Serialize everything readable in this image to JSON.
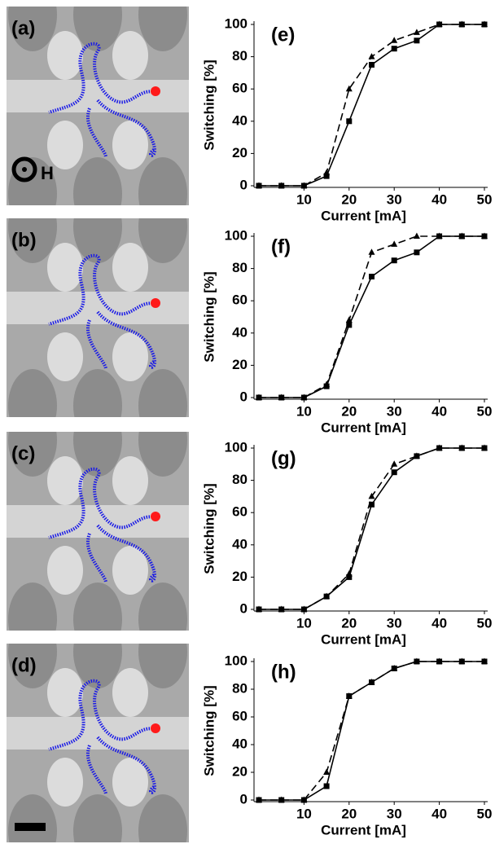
{
  "images": [
    {
      "label": "(a)",
      "field_label": "H"
    },
    {
      "label": "(b)"
    },
    {
      "label": "(c)"
    },
    {
      "label": "(d)"
    }
  ],
  "chart_data": [
    {
      "type": "line",
      "label": "(e)",
      "x_label": "Current [mA]",
      "y_label": "Switching [%]",
      "x": [
        0,
        5,
        10,
        15,
        20,
        25,
        30,
        35,
        40,
        45,
        50
      ],
      "xlim": [
        0,
        50
      ],
      "xticks": [
        10,
        20,
        30,
        40,
        50
      ],
      "ylim": [
        0,
        100
      ],
      "yticks": [
        0,
        20,
        40,
        60,
        80,
        100
      ],
      "series": [
        {
          "color": "#000000",
          "line_style": "solid",
          "marker": "square",
          "values": [
            0,
            0,
            0,
            6,
            40,
            75,
            85,
            90,
            100,
            100,
            100
          ]
        },
        {
          "color": "#000000",
          "line_style": "dashed",
          "marker": "triangle",
          "values": [
            0,
            0,
            0,
            8,
            60,
            80,
            90,
            95,
            100,
            100,
            100
          ]
        }
      ]
    },
    {
      "type": "line",
      "label": "(f)",
      "x_label": "Current [mA]",
      "y_label": "Switching [%]",
      "x": [
        0,
        5,
        10,
        15,
        20,
        25,
        30,
        35,
        40,
        45,
        50
      ],
      "xlim": [
        0,
        50
      ],
      "xticks": [
        10,
        20,
        30,
        40,
        50
      ],
      "ylim": [
        0,
        100
      ],
      "yticks": [
        0,
        20,
        40,
        60,
        80,
        100
      ],
      "series": [
        {
          "color": "#000000",
          "line_style": "solid",
          "marker": "square",
          "values": [
            0,
            0,
            0,
            7,
            45,
            75,
            85,
            90,
            100,
            100,
            100
          ]
        },
        {
          "color": "#000000",
          "line_style": "dashed",
          "marker": "triangle",
          "values": [
            0,
            0,
            0,
            8,
            48,
            90,
            95,
            100,
            100,
            100,
            100
          ]
        }
      ]
    },
    {
      "type": "line",
      "label": "(g)",
      "x_label": "Current [mA]",
      "y_label": "Switching [%]",
      "x": [
        0,
        5,
        10,
        15,
        20,
        25,
        30,
        35,
        40,
        45,
        50
      ],
      "xlim": [
        0,
        50
      ],
      "xticks": [
        10,
        20,
        30,
        40,
        50
      ],
      "ylim": [
        0,
        100
      ],
      "yticks": [
        0,
        20,
        40,
        60,
        80,
        100
      ],
      "series": [
        {
          "color": "#000000",
          "line_style": "solid",
          "marker": "square",
          "values": [
            0,
            0,
            0,
            8,
            20,
            65,
            85,
            95,
            100,
            100,
            100
          ]
        },
        {
          "color": "#000000",
          "line_style": "dashed",
          "marker": "triangle",
          "values": [
            0,
            0,
            0,
            8,
            22,
            70,
            90,
            95,
            100,
            100,
            100
          ]
        }
      ]
    },
    {
      "type": "line",
      "label": "(h)",
      "x_label": "Current [mA]",
      "y_label": "Switching [%]",
      "x": [
        0,
        5,
        10,
        15,
        20,
        25,
        30,
        35,
        40,
        45,
        50
      ],
      "xlim": [
        0,
        50
      ],
      "xticks": [
        10,
        20,
        30,
        40,
        50
      ],
      "ylim": [
        0,
        100
      ],
      "yticks": [
        0,
        20,
        40,
        60,
        80,
        100
      ],
      "series": [
        {
          "color": "#000000",
          "line_style": "solid",
          "marker": "square",
          "values": [
            0,
            0,
            0,
            10,
            75,
            85,
            95,
            100,
            100,
            100,
            100
          ]
        },
        {
          "color": "#000000",
          "line_style": "dashed",
          "marker": "triangle",
          "values": [
            0,
            0,
            0,
            20,
            75,
            85,
            95,
            100,
            100,
            100,
            100
          ]
        }
      ]
    }
  ]
}
